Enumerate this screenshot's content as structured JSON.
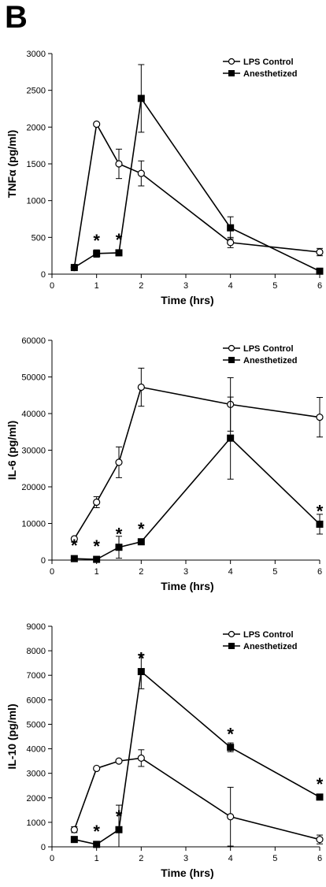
{
  "panel_label": "B",
  "legend": {
    "control": "LPS Control",
    "anesthetized": "Anesthetized"
  },
  "chart_data": [
    {
      "type": "line",
      "xlabel": "Time (hrs)",
      "ylabel": "TNFα (pg/ml)",
      "xlim": [
        0,
        6
      ],
      "ylim": [
        0,
        3000
      ],
      "xticks": [
        0,
        1,
        2,
        3,
        4,
        5,
        6
      ],
      "yticks": [
        0,
        500,
        1000,
        1500,
        2000,
        2500,
        3000
      ],
      "legend_position": "top-right",
      "grid": false,
      "series": [
        {
          "name": "LPS Control",
          "marker": "open-circle",
          "x": [
            0.5,
            1,
            1.5,
            2,
            4,
            6
          ],
          "y": [
            90,
            2040,
            1500,
            1370,
            430,
            300
          ],
          "err": [
            0,
            0,
            200,
            170,
            70,
            50
          ]
        },
        {
          "name": "Anesthetized",
          "marker": "filled-square",
          "x": [
            0.5,
            1,
            1.5,
            2,
            4,
            6
          ],
          "y": [
            90,
            280,
            290,
            2390,
            630,
            40
          ],
          "err": [
            0,
            50,
            30,
            460,
            150,
            0
          ]
        }
      ],
      "annotations": [
        {
          "x": 1,
          "y": 280,
          "text": "*"
        },
        {
          "x": 1.5,
          "y": 290,
          "text": "*"
        }
      ]
    },
    {
      "type": "line",
      "xlabel": "Time (hrs)",
      "ylabel": "IL-6 (pg/ml)",
      "xlim": [
        0,
        6
      ],
      "ylim": [
        0,
        60000
      ],
      "xticks": [
        0,
        1,
        2,
        3,
        4,
        5,
        6
      ],
      "yticks": [
        0,
        10000,
        20000,
        30000,
        40000,
        50000,
        60000
      ],
      "legend_position": "top-right",
      "grid": false,
      "series": [
        {
          "name": "LPS Control",
          "marker": "open-circle",
          "x": [
            0.5,
            1,
            1.5,
            2,
            4,
            6
          ],
          "y": [
            5800,
            15800,
            26700,
            47200,
            42500,
            39000
          ],
          "err": [
            0,
            1500,
            4200,
            5200,
            7300,
            5400
          ]
        },
        {
          "name": "Anesthetized",
          "marker": "filled-square",
          "x": [
            0.5,
            1,
            1.5,
            2,
            4,
            6
          ],
          "y": [
            400,
            200,
            3500,
            5000,
            33300,
            9800
          ],
          "err": [
            0,
            0,
            3000,
            0,
            11200,
            2700
          ]
        }
      ],
      "annotations": [
        {
          "x": 0.5,
          "y": 400,
          "text": "*"
        },
        {
          "x": 1,
          "y": 200,
          "text": "*"
        },
        {
          "x": 1.5,
          "y": 3500,
          "text": "*"
        },
        {
          "x": 2,
          "y": 5000,
          "text": "*"
        },
        {
          "x": 6,
          "y": 9800,
          "text": "*"
        }
      ]
    },
    {
      "type": "line",
      "xlabel": "Time (hrs)",
      "ylabel": "IL-10 (pg/ml)",
      "xlim": [
        0,
        6
      ],
      "ylim": [
        0,
        9000
      ],
      "xticks": [
        0,
        1,
        2,
        3,
        4,
        5,
        6
      ],
      "yticks": [
        0,
        1000,
        2000,
        3000,
        4000,
        5000,
        6000,
        7000,
        8000,
        9000
      ],
      "legend_position": "top-right",
      "grid": false,
      "series": [
        {
          "name": "LPS Control",
          "marker": "open-circle",
          "x": [
            0.5,
            1,
            1.5,
            2,
            4,
            6
          ],
          "y": [
            700,
            3200,
            3500,
            3620,
            1230,
            300
          ],
          "err": [
            120,
            0,
            0,
            340,
            1200,
            180
          ]
        },
        {
          "name": "Anesthetized",
          "marker": "filled-square",
          "x": [
            0.5,
            1,
            1.5,
            2,
            4,
            6
          ],
          "y": [
            300,
            100,
            700,
            7150,
            4060,
            2030
          ],
          "err": [
            0,
            0,
            1000,
            700,
            180,
            0
          ]
        }
      ],
      "annotations": [
        {
          "x": 1,
          "y": 100,
          "text": "*"
        },
        {
          "x": 1.5,
          "y": 700,
          "text": "*"
        },
        {
          "x": 2,
          "y": 7150,
          "text": "*"
        },
        {
          "x": 4,
          "y": 4060,
          "text": "*"
        },
        {
          "x": 6,
          "y": 2030,
          "text": "*"
        }
      ]
    }
  ]
}
